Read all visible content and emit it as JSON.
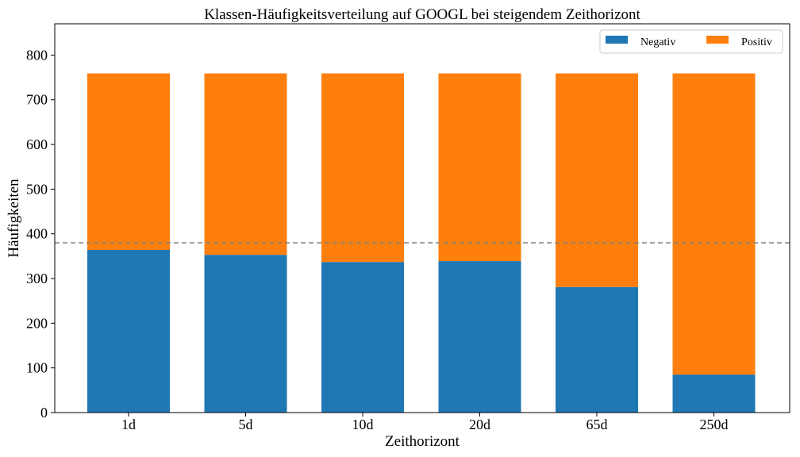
{
  "chart_data": {
    "type": "bar",
    "stacked": true,
    "title": "Klassen-Häufigkeitsverteilung auf GOOGL bei steigendem Zeithorizont",
    "xlabel": "Zeithorizont",
    "ylabel": "Häufigkeiten",
    "categories": [
      "1d",
      "5d",
      "10d",
      "20d",
      "65d",
      "250d"
    ],
    "series": [
      {
        "name": "Negativ",
        "color": "#1f77b4",
        "values": [
          364,
          353,
          337,
          339,
          281,
          85
        ]
      },
      {
        "name": "Positiv",
        "color": "#ff7f0e",
        "values": [
          395,
          406,
          422,
          420,
          478,
          674
        ]
      }
    ],
    "ylim": [
      0,
      870
    ],
    "yticks": [
      0,
      100,
      200,
      300,
      400,
      500,
      600,
      700,
      800
    ],
    "reference_line": {
      "y": 380,
      "style": "dashed",
      "color": "#808080"
    },
    "legend": {
      "position": "top-right",
      "columns": 2
    },
    "grid": false
  }
}
